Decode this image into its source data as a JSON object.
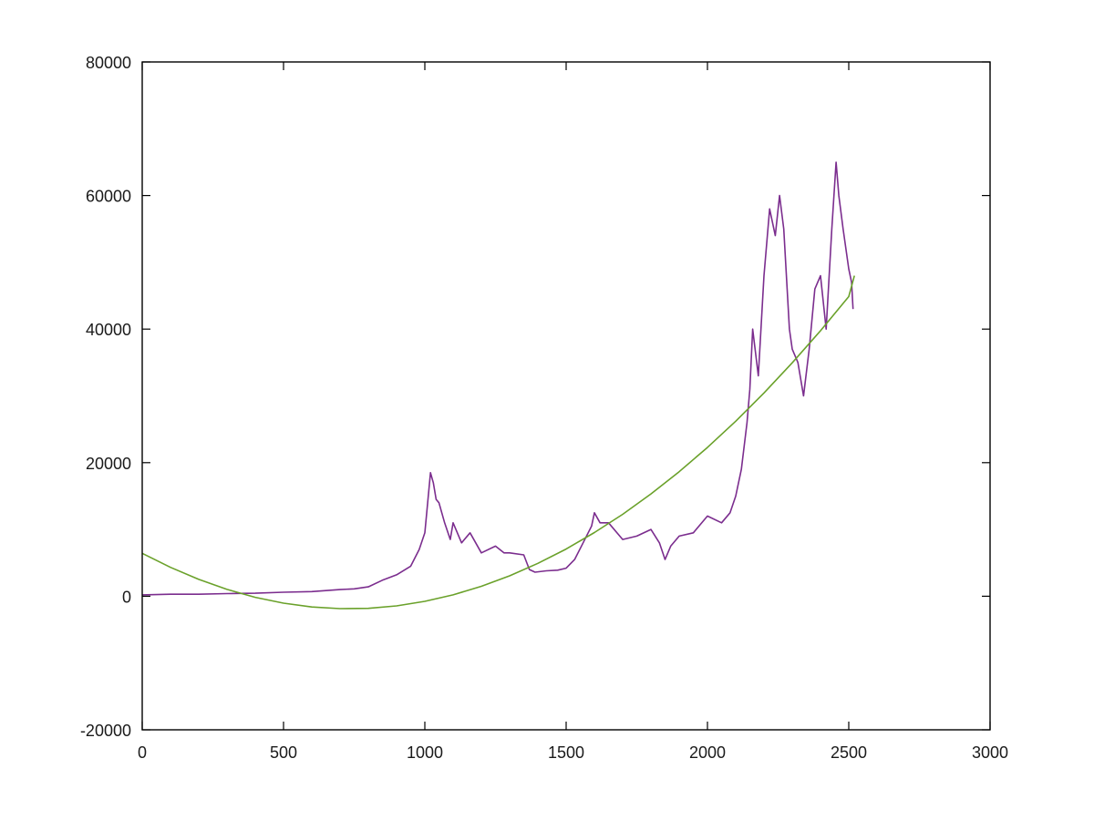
{
  "chart_data": {
    "type": "line",
    "title": "",
    "xlabel": "",
    "ylabel": "",
    "xlim": [
      0,
      3000
    ],
    "ylim": [
      -20000,
      80000
    ],
    "xticks": [
      0,
      500,
      1000,
      1500,
      2000,
      2500,
      3000
    ],
    "yticks": [
      -20000,
      0,
      20000,
      40000,
      60000,
      80000
    ],
    "grid": false,
    "legend": "none",
    "series": [
      {
        "color": "#7b2d8e",
        "x": [
          0,
          100,
          200,
          300,
          400,
          500,
          600,
          700,
          750,
          800,
          850,
          900,
          950,
          980,
          1000,
          1010,
          1020,
          1030,
          1040,
          1050,
          1070,
          1090,
          1100,
          1130,
          1160,
          1200,
          1250,
          1280,
          1300,
          1350,
          1370,
          1390,
          1430,
          1470,
          1500,
          1530,
          1560,
          1590,
          1600,
          1620,
          1650,
          1700,
          1750,
          1800,
          1830,
          1850,
          1870,
          1900,
          1950,
          2000,
          2050,
          2080,
          2100,
          2120,
          2140,
          2150,
          2160,
          2180,
          2200,
          2220,
          2240,
          2255,
          2270,
          2290,
          2300,
          2320,
          2340,
          2360,
          2380,
          2400,
          2420,
          2440,
          2455,
          2465,
          2480,
          2500,
          2510,
          2515
        ],
        "y": [
          200,
          300,
          300,
          400,
          450,
          600,
          700,
          1000,
          1100,
          1400,
          2400,
          3200,
          4500,
          7000,
          9500,
          14000,
          18500,
          17000,
          14500,
          14000,
          11000,
          8500,
          11000,
          8000,
          9500,
          6500,
          7500,
          6500,
          6500,
          6200,
          4000,
          3600,
          3800,
          3900,
          4200,
          5500,
          8000,
          10500,
          12500,
          11000,
          11000,
          8500,
          9000,
          10000,
          8000,
          5500,
          7500,
          9000,
          9500,
          12000,
          11000,
          12500,
          15000,
          19000,
          26000,
          31000,
          40000,
          33000,
          48000,
          58000,
          54000,
          60000,
          55000,
          40000,
          37000,
          35000,
          30000,
          37000,
          46000,
          48000,
          40000,
          55000,
          65000,
          60000,
          55000,
          49000,
          47000,
          43000
        ]
      },
      {
        "color": "#6aa12a",
        "x": [
          0,
          100,
          200,
          300,
          400,
          500,
          600,
          700,
          800,
          900,
          1000,
          1100,
          1200,
          1300,
          1400,
          1500,
          1600,
          1700,
          1800,
          1900,
          2000,
          2100,
          2200,
          2300,
          2400,
          2500,
          2520
        ],
        "y": [
          6430,
          4330,
          2520,
          1030,
          -160,
          -1040,
          -1610,
          -1860,
          -1810,
          -1440,
          -770,
          210,
          1490,
          3050,
          4920,
          7070,
          9530,
          12270,
          15320,
          18650,
          22280,
          26210,
          30430,
          34950,
          39760,
          44870,
          48000
        ]
      }
    ]
  }
}
